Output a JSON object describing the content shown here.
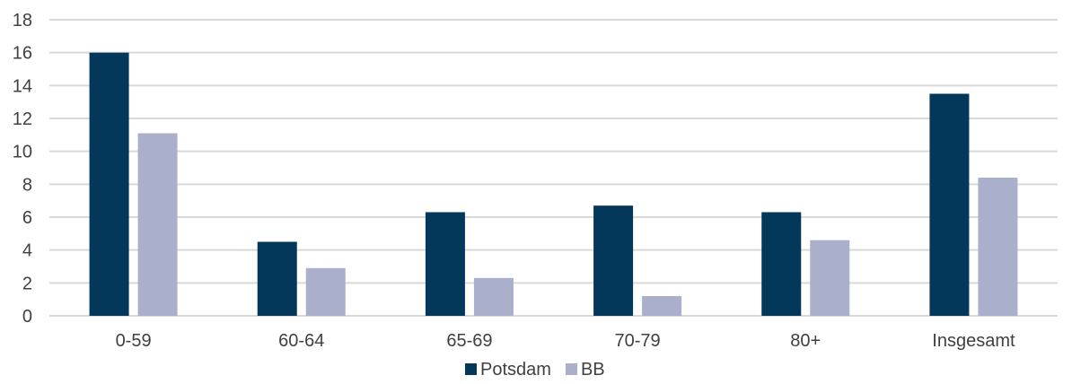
{
  "chart_data": {
    "type": "bar",
    "title": "",
    "xlabel": "",
    "ylabel": "",
    "categories": [
      "0-59",
      "60-64",
      "65-69",
      "70-79",
      "80+",
      "Insgesamt"
    ],
    "series": [
      {
        "name": "Potsdam",
        "color": "#03385a",
        "values": [
          16.0,
          4.5,
          6.3,
          6.7,
          6.3,
          13.5
        ]
      },
      {
        "name": "BB",
        "color": "#aab0cb",
        "values": [
          11.1,
          2.9,
          2.3,
          1.2,
          4.6,
          8.4
        ]
      }
    ],
    "ylim": [
      0,
      18
    ],
    "yticks": [
      0,
      2,
      4,
      6,
      8,
      10,
      12,
      14,
      16,
      18
    ],
    "grid": true,
    "grid_color": "#d9d9d9",
    "legend_position": "bottom-center"
  }
}
